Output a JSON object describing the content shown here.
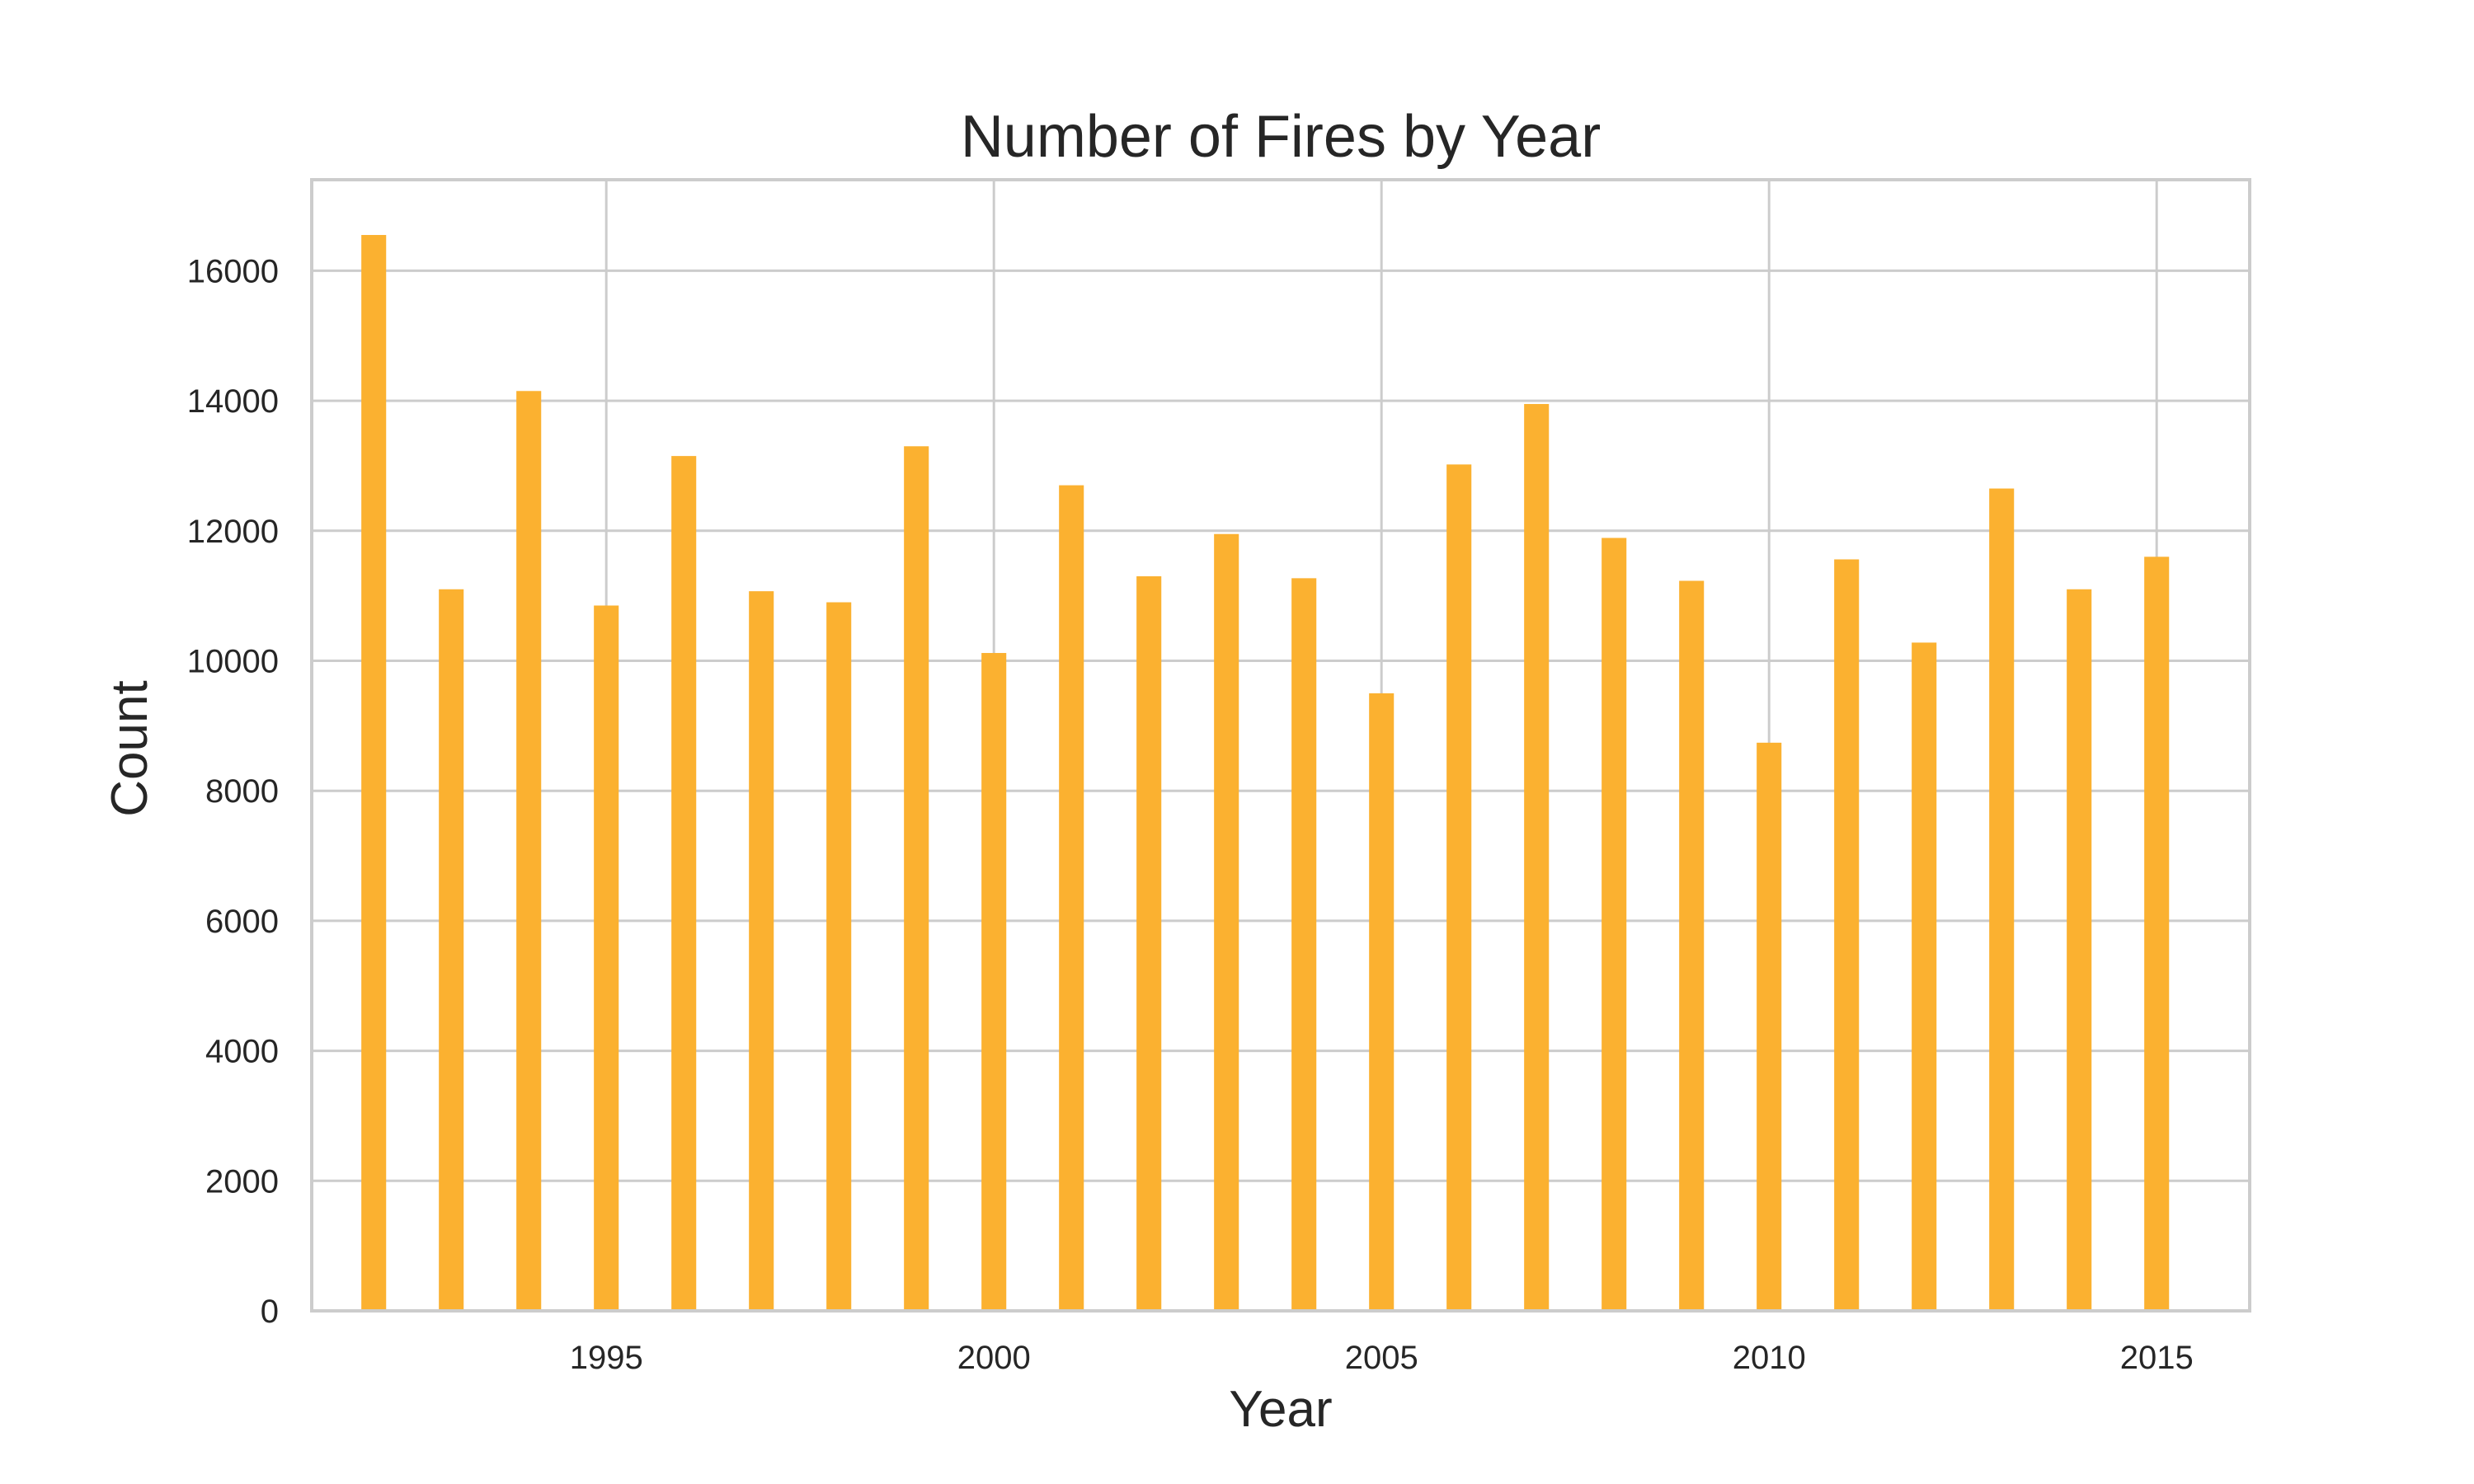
{
  "chart_data": {
    "type": "bar",
    "title": "Number of Fires by Year",
    "xlabel": "Year",
    "ylabel": "Count",
    "x": [
      1992,
      1993,
      1994,
      1995,
      1996,
      1997,
      1998,
      1999,
      2000,
      2001,
      2002,
      2003,
      2004,
      2005,
      2006,
      2007,
      2008,
      2009,
      2010,
      2011,
      2012,
      2013,
      2014,
      2015
    ],
    "values": [
      16550,
      11100,
      14150,
      10850,
      13150,
      11070,
      10900,
      13300,
      10120,
      12700,
      11300,
      11950,
      11270,
      9500,
      13020,
      13950,
      11890,
      11230,
      8740,
      11560,
      10280,
      12650,
      11100,
      11600
    ],
    "xlim": [
      1991.2,
      2016.2
    ],
    "ylim": [
      0,
      17400
    ],
    "xticks": [
      1995,
      2000,
      2005,
      2010,
      2015
    ],
    "yticks": [
      0,
      2000,
      4000,
      6000,
      8000,
      10000,
      12000,
      14000,
      16000
    ],
    "bar_color": "#fbb130",
    "grid": true
  }
}
